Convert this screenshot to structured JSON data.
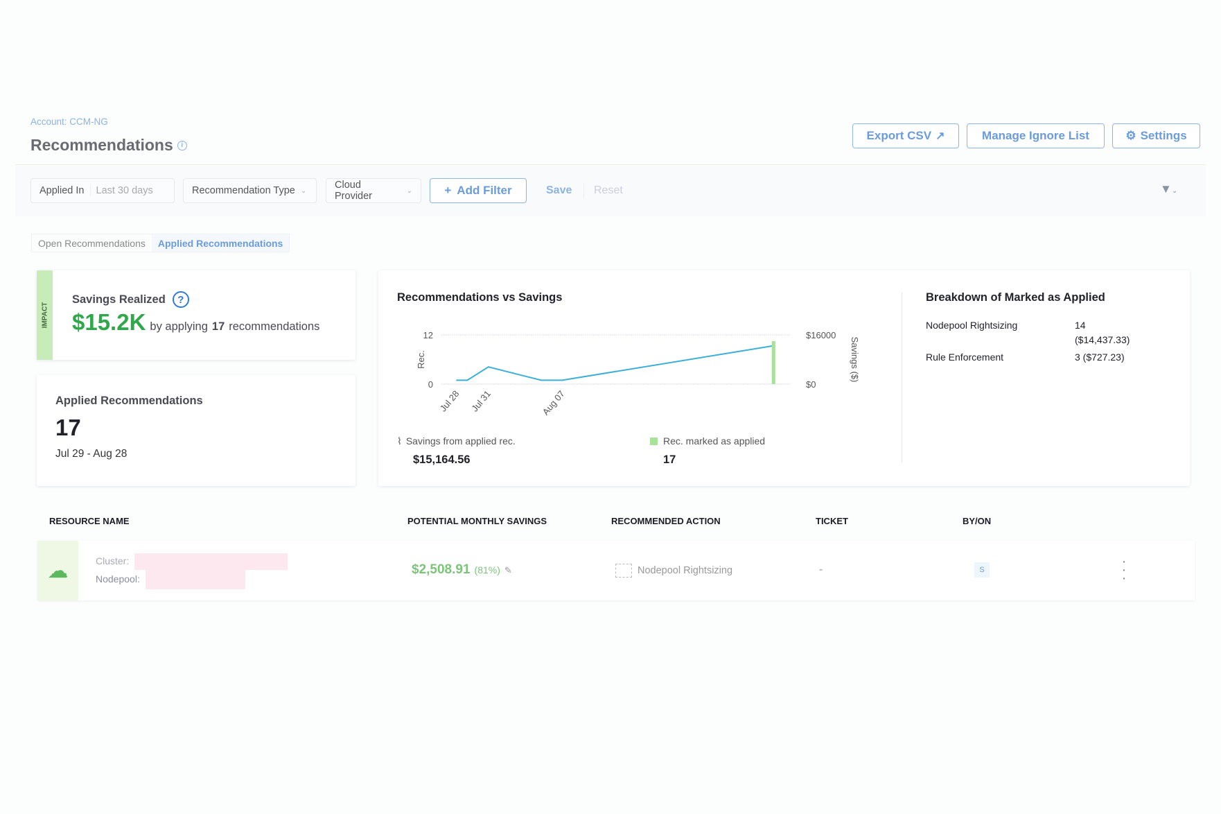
{
  "header": {
    "account": "Account: CCM-NG",
    "title": "Recommendations",
    "buttons": {
      "export": "Export CSV",
      "ignore": "Manage Ignore List",
      "settings": "Settings"
    }
  },
  "filters": {
    "applied_in_label": "Applied In",
    "applied_in_value": "Last 30 days",
    "recommendation_type": "Recommendation Type",
    "cloud_provider": "Cloud Provider",
    "add_filter": "Add Filter",
    "save": "Save",
    "reset": "Reset"
  },
  "tabs": [
    {
      "label": "Open Recommendations",
      "active": false
    },
    {
      "label": "Applied Recommendations",
      "active": true
    }
  ],
  "savings": {
    "impact": "IMPACT",
    "title": "Savings Realized",
    "amount": "$15.2K",
    "by_applying": "by applying",
    "count": "17",
    "suffix": "recommendations"
  },
  "applied": {
    "title": "Applied Recommendations",
    "count": "17",
    "range": "Jul 29 - Aug 28"
  },
  "chart_data": {
    "type": "line",
    "title": "Recommendations vs Savings",
    "ylabel": "Rec.",
    "y2label": "Savings ($)",
    "ylim": [
      0,
      12
    ],
    "y2lim": [
      0,
      16000
    ],
    "yticks": [
      "0",
      "12"
    ],
    "y2ticks": [
      "$0",
      "$16000"
    ],
    "xticks": [
      "Jul 28",
      "Jul 31",
      "Aug 07"
    ],
    "series": [
      {
        "name": "Savings from applied rec.",
        "kind": "line",
        "axis": "right",
        "color": "#3ab0d8",
        "x": [
          "Jul 28",
          "Jul 29",
          "Jul 31",
          "Aug 05",
          "Aug 07",
          "Aug 27"
        ],
        "values": [
          1270,
          1270,
          5590,
          1270,
          1270,
          12440
        ]
      },
      {
        "name": "Rec. marked as applied",
        "kind": "bar",
        "axis": "left",
        "color": "#a8e29a",
        "x": [
          "Aug 27"
        ],
        "values": [
          10.5
        ]
      }
    ],
    "legend": {
      "savings_label": "Savings from applied rec.",
      "savings_value": "$15,164.56",
      "rec_label": "Rec. marked as applied",
      "rec_value": "17"
    }
  },
  "breakdown": {
    "title": "Breakdown of Marked as Applied",
    "rows": [
      {
        "name": "Nodepool Rightsizing",
        "value": "14",
        "sub": "($14,437.33)"
      },
      {
        "name": "Rule Enforcement",
        "value": "3 ($727.23)",
        "sub": ""
      }
    ]
  },
  "table": {
    "headers": [
      "RESOURCE NAME",
      "POTENTIAL MONTHLY SAVINGS",
      "RECOMMENDED ACTION",
      "TICKET",
      "BY/ON"
    ],
    "rows": [
      {
        "cluster_label": "Cluster:",
        "nodepool_label": "Nodepool:",
        "savings": "$2,508.91",
        "percent": "(81%)",
        "action": "Nodepool Rightsizing",
        "ticket": "-",
        "by": "S"
      }
    ]
  },
  "colors": {
    "accent": "#6a9bdc",
    "green": "#2ea84a",
    "impact": "#c7ecb9"
  }
}
